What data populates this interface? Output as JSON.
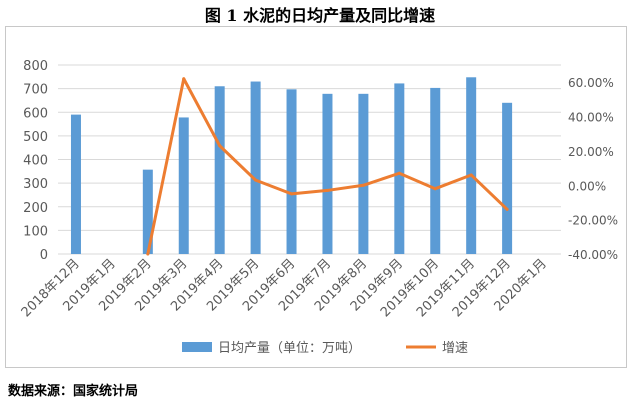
{
  "figure": {
    "title": "图 1 水泥的日均产量及同比增速",
    "source": "数据来源：国家统计局"
  },
  "colors": {
    "bar": "#5b9bd5",
    "line": "#ed7d31",
    "grid": "#d9d9d9",
    "axis_text": "#595959"
  },
  "chart_data": {
    "type": "bar",
    "categories": [
      "2018年12月",
      "2019年1月",
      "2019年2月",
      "2019年3月",
      "2019年4月",
      "2019年5月",
      "2019年6月",
      "2019年7月",
      "2019年8月",
      "2019年9月",
      "2019年10月",
      "2019年11月",
      "2019年12月",
      "2020年1月"
    ],
    "left_axis": {
      "ylim": [
        0,
        800
      ],
      "ticks": [
        "0",
        "100",
        "200",
        "300",
        "400",
        "500",
        "600",
        "700",
        "800"
      ]
    },
    "right_axis": {
      "ylim": [
        -40,
        70
      ],
      "ticks": [
        "-40.00%",
        "-20.00%",
        "0.00%",
        "20.00%",
        "40.00%",
        "60.00%"
      ]
    },
    "series": [
      {
        "name": "日均产量（单位：万吨）",
        "type": "bar",
        "axis": "left",
        "values": [
          590,
          null,
          357,
          578,
          710,
          730,
          697,
          678,
          678,
          722,
          703,
          748,
          640,
          null
        ]
      },
      {
        "name": "增速",
        "type": "line",
        "axis": "right",
        "values": [
          null,
          null,
          -40,
          62,
          23,
          3,
          -5,
          -3,
          0,
          7,
          -2,
          6,
          -14,
          null
        ]
      }
    ],
    "grid": true,
    "legend_position": "bottom"
  }
}
